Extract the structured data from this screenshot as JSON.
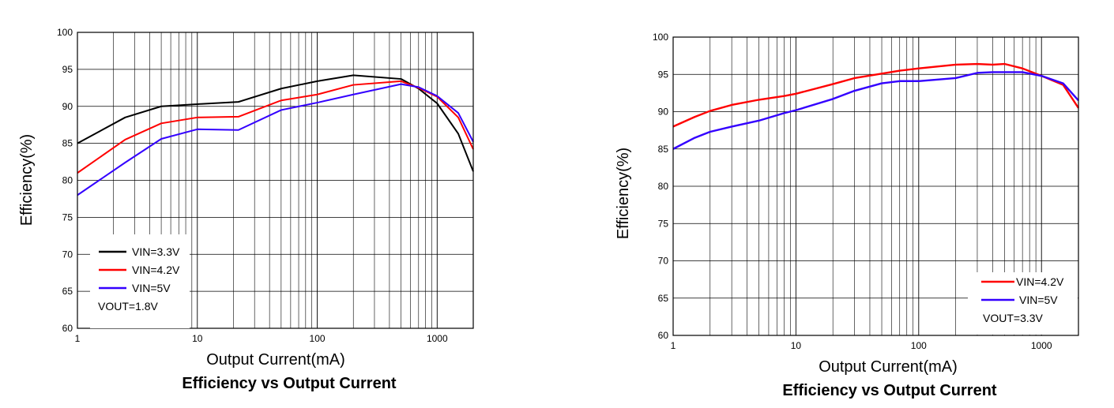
{
  "chart_data": [
    {
      "type": "line",
      "title": "Efficiency vs Output Current",
      "xlabel": "Output Current(mA)",
      "ylabel": "Efficiency(%)",
      "xscale": "log",
      "xlim": [
        1,
        2000
      ],
      "ylim": [
        60,
        100
      ],
      "xticks": [
        "1",
        "10",
        "100",
        "1000"
      ],
      "yticks": [
        "60",
        "65",
        "70",
        "75",
        "80",
        "85",
        "90",
        "95",
        "100"
      ],
      "grid": true,
      "legend_position": "bottom-left",
      "note": "VOUT=1.8V",
      "series": [
        {
          "name": "VIN=3.3V",
          "color": "#000000",
          "x": [
            1,
            2.5,
            5,
            10,
            22,
            50,
            100,
            200,
            500,
            700,
            1000,
            1500,
            2000
          ],
          "y": [
            85,
            88.5,
            90,
            90.3,
            90.6,
            92.4,
            93.4,
            94.2,
            93.7,
            92.4,
            90.4,
            86.3,
            81.2
          ]
        },
        {
          "name": "VIN=4.2V",
          "color": "#ff0000",
          "x": [
            1,
            2.5,
            5,
            10,
            22,
            50,
            100,
            200,
            500,
            700,
            1000,
            1500,
            2000
          ],
          "y": [
            81,
            85.5,
            87.7,
            88.5,
            88.6,
            90.8,
            91.6,
            92.9,
            93.4,
            92.5,
            91.3,
            88.5,
            84.2
          ]
        },
        {
          "name": "VIN=5V",
          "color": "#3300ff",
          "x": [
            1,
            2.5,
            5,
            10,
            22,
            50,
            100,
            200,
            500,
            700,
            1000,
            1500,
            2000
          ],
          "y": [
            78,
            82.4,
            85.6,
            86.9,
            86.8,
            89.5,
            90.5,
            91.6,
            93.0,
            92.6,
            91.4,
            89.1,
            85.2
          ]
        }
      ]
    },
    {
      "type": "line",
      "title": "Efficiency vs Output Current",
      "xlabel": "Output Current(mA)",
      "ylabel": "Efficiency(%)",
      "xscale": "log",
      "xlim": [
        1,
        2000
      ],
      "ylim": [
        60,
        100
      ],
      "xticks": [
        "1",
        "10",
        "100",
        "1000"
      ],
      "yticks": [
        "60",
        "65",
        "70",
        "75",
        "80",
        "85",
        "90",
        "95",
        "100"
      ],
      "grid": true,
      "legend_position": "bottom-right",
      "note": "VOUT=3.3V",
      "series": [
        {
          "name": "VIN=4.2V",
          "color": "#ff0000",
          "x": [
            1,
            1.5,
            2,
            3,
            5,
            8,
            10,
            20,
            30,
            50,
            70,
            100,
            200,
            300,
            400,
            500,
            700,
            1000,
            1500,
            2000
          ],
          "y": [
            88,
            89.3,
            90.1,
            90.9,
            91.6,
            92.1,
            92.4,
            93.7,
            94.5,
            95.1,
            95.5,
            95.8,
            96.3,
            96.4,
            96.3,
            96.4,
            95.8,
            94.8,
            93.6,
            90.5
          ]
        },
        {
          "name": "VIN=5V",
          "color": "#3300ff",
          "x": [
            1,
            1.5,
            2,
            3,
            5,
            8,
            10,
            20,
            30,
            50,
            70,
            100,
            200,
            300,
            400,
            500,
            700,
            1000,
            1500,
            2000
          ],
          "y": [
            85,
            86.5,
            87.3,
            88.0,
            88.8,
            89.8,
            90.2,
            91.7,
            92.8,
            93.8,
            94.1,
            94.1,
            94.5,
            95.2,
            95.3,
            95.3,
            95.3,
            94.8,
            93.8,
            91.5
          ]
        }
      ]
    }
  ]
}
